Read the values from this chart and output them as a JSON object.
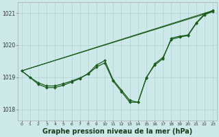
{
  "background_color": "#cce8e8",
  "grid_color": "#b0d0d0",
  "line_color": "#1a5c1a",
  "marker_color": "#1a5c1a",
  "xlabel": "Graphe pression niveau de la mer (hPa)",
  "xlabel_fontsize": 7,
  "ylabel_ticks": [
    1018,
    1019,
    1020,
    1021
  ],
  "xlim": [
    -0.5,
    23.5
  ],
  "ylim": [
    1017.65,
    1021.35
  ],
  "x_ticks": [
    0,
    1,
    2,
    3,
    4,
    5,
    6,
    7,
    8,
    9,
    10,
    11,
    12,
    13,
    14,
    15,
    16,
    17,
    18,
    19,
    20,
    21,
    22,
    23
  ],
  "curve1": [
    1019.2,
    1019.0,
    1018.83,
    1018.73,
    1018.73,
    1018.8,
    1018.88,
    1018.98,
    1019.1,
    1019.32,
    1019.45,
    1018.88,
    1018.55,
    1018.22,
    1018.22,
    1019.0,
    1019.38,
    1019.58,
    1020.22,
    1020.28,
    1020.32,
    1020.7,
    1020.98,
    1021.08
  ],
  "curve2": [
    1019.2,
    1019.0,
    1018.78,
    1018.68,
    1018.68,
    1018.75,
    1018.85,
    1018.96,
    1019.12,
    1019.38,
    1019.52,
    1018.92,
    1018.6,
    1018.28,
    1018.22,
    1018.98,
    1019.42,
    1019.62,
    1020.18,
    1020.25,
    1020.3,
    1020.68,
    1020.95,
    1021.05
  ],
  "line1_x": [
    0,
    23
  ],
  "line1_y": [
    1019.2,
    1021.08
  ],
  "line2_x": [
    0,
    23
  ],
  "line2_y": [
    1019.2,
    1021.05
  ]
}
